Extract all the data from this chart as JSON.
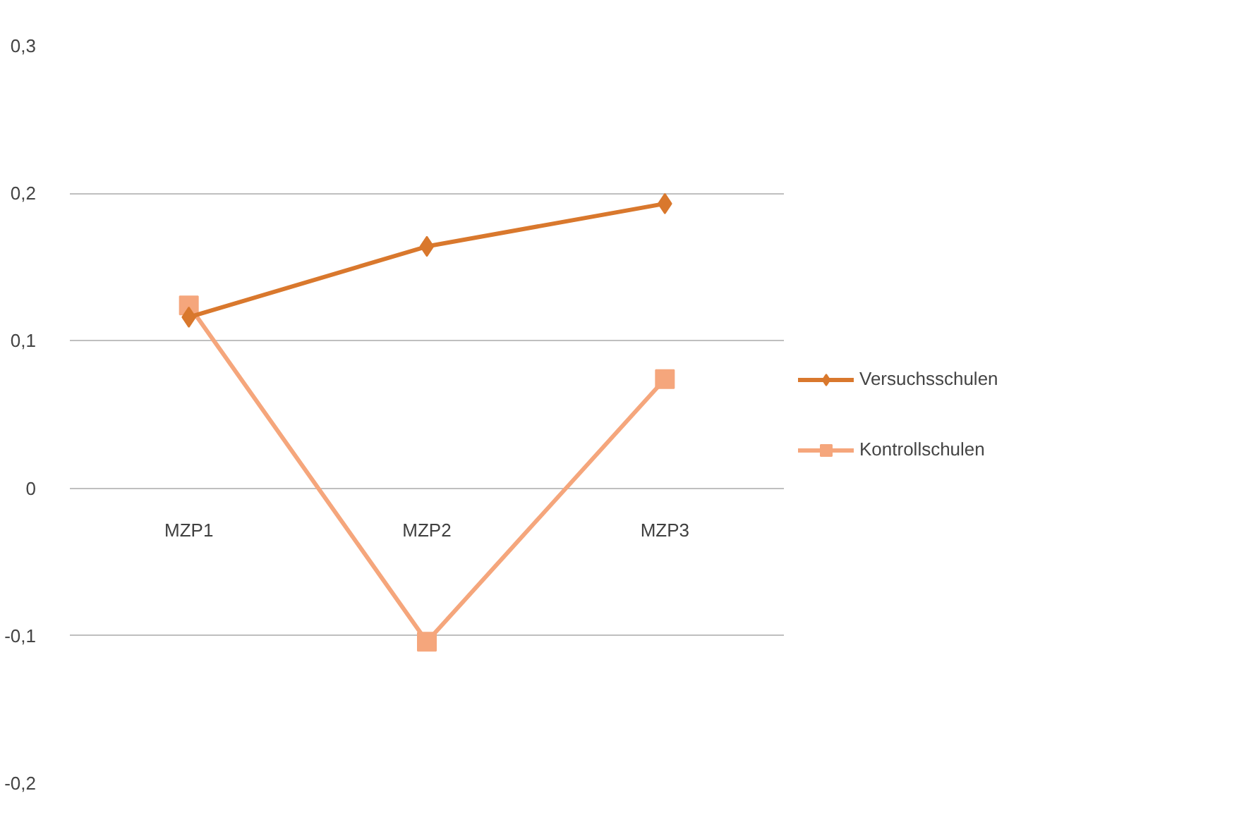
{
  "chart_data": {
    "type": "line",
    "categories": [
      "MZP1",
      "MZP2",
      "MZP3"
    ],
    "series": [
      {
        "name": "Versuchsschulen",
        "color": "#d9782d",
        "marker": "diamond",
        "values": [
          0.116,
          0.164,
          0.193
        ]
      },
      {
        "name": "Kontrollschulen",
        "color": "#f5a67c",
        "marker": "square",
        "values": [
          0.124,
          -0.104,
          0.074
        ]
      }
    ],
    "ylim": [
      -0.2,
      0.3
    ],
    "yticks": [
      {
        "value": -0.2,
        "label": "-0,2"
      },
      {
        "value": -0.1,
        "label": "-0,1"
      },
      0,
      {
        "value": 0.1,
        "label": "0,1"
      },
      {
        "value": 0.2,
        "label": "0,2"
      },
      {
        "value": 0.3,
        "label": "0,3"
      }
    ],
    "grid": "y",
    "legend": "right"
  }
}
